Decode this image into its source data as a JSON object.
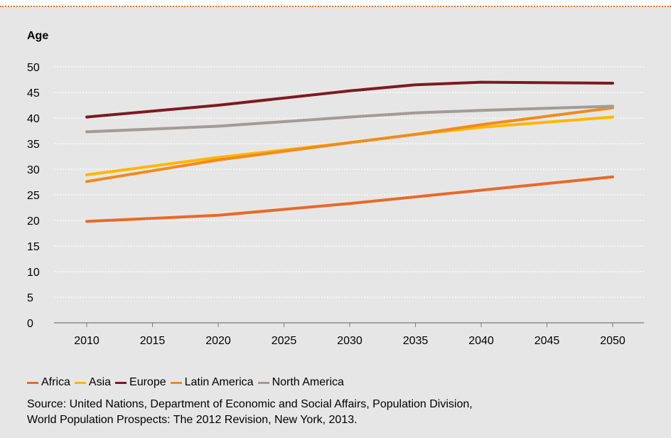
{
  "chart_data": {
    "type": "line",
    "ylabel": "Age",
    "x": [
      2010,
      2020,
      2030,
      2035,
      2040,
      2050
    ],
    "xticks": [
      "2010",
      "2015",
      "2020",
      "2025",
      "2030",
      "2035",
      "2040",
      "2045",
      "2050"
    ],
    "yticks": [
      "0",
      "5",
      "10",
      "15",
      "20",
      "25",
      "30",
      "35",
      "40",
      "45",
      "50"
    ],
    "xlim": [
      2010,
      2050
    ],
    "ylim": [
      0,
      50
    ],
    "grid": "horizontal-dotted",
    "legend_position": "bottom-left",
    "series": [
      {
        "name": "Africa",
        "color": "#e8692a",
        "values": [
          19.8,
          21.0,
          23.3,
          24.6,
          25.9,
          28.5
        ]
      },
      {
        "name": "Asia",
        "color": "#ffb600",
        "values": [
          28.9,
          32.3,
          35.2,
          36.8,
          38.2,
          40.2
        ]
      },
      {
        "name": "Europe",
        "color": "#7d1a1f",
        "values": [
          40.2,
          42.5,
          45.3,
          46.5,
          47.0,
          46.8
        ]
      },
      {
        "name": "Latin America",
        "color": "#f08b1d",
        "values": [
          27.6,
          31.8,
          35.2,
          36.8,
          38.7,
          42.0
        ]
      },
      {
        "name": "North America",
        "color": "#a29b97",
        "values": [
          37.3,
          38.4,
          40.2,
          41.0,
          41.5,
          42.3
        ]
      }
    ]
  },
  "source": {
    "line1": "Source: United Nations, Department of Economic and Social Affairs, Population Division,",
    "line2": "World Population Prospects: The 2012 Revision, New York, 2013."
  }
}
